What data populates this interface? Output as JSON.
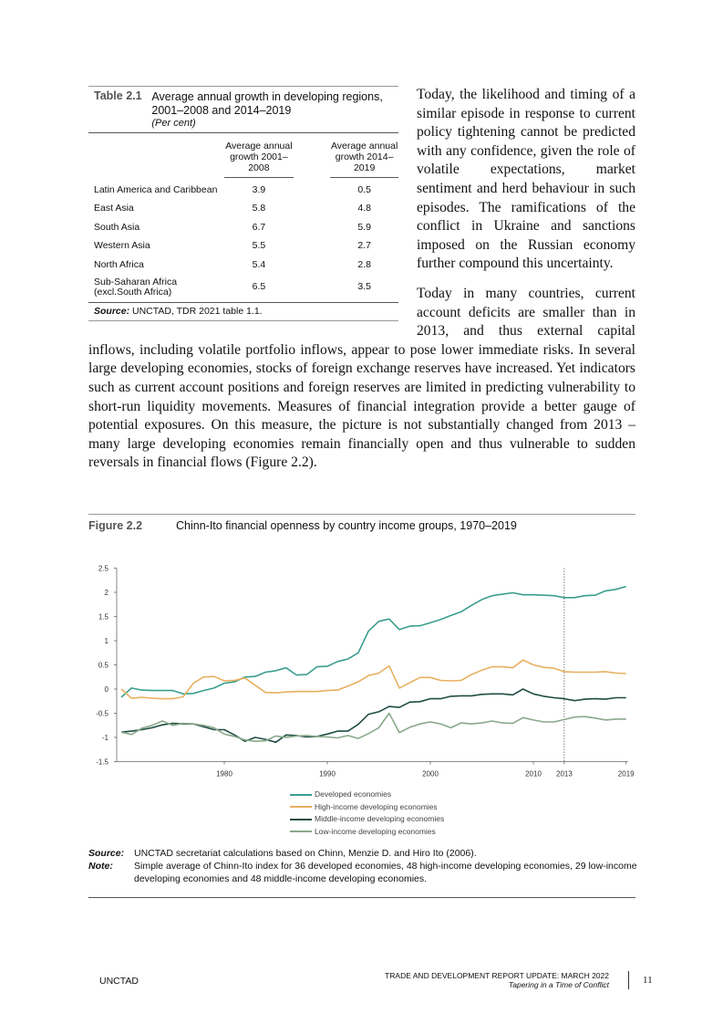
{
  "table": {
    "label": "Table 2.1",
    "title": "Average annual growth in developing regions, 2001–2008 and 2014–2019",
    "unit": "(Per cent)",
    "columns": [
      "Average annual growth 2001–2008",
      "Average annual growth 2014–2019"
    ],
    "rows": [
      {
        "name": "Latin America and Caribbean",
        "v1": "3.9",
        "v2": "0.5"
      },
      {
        "name": "East Asia",
        "v1": "5.8",
        "v2": "4.8"
      },
      {
        "name": "South Asia",
        "v1": "6.7",
        "v2": "5.9"
      },
      {
        "name": "Western Asia",
        "v1": "5.5",
        "v2": "2.7"
      },
      {
        "name": "North Africa",
        "v1": "5.4",
        "v2": "2.8"
      },
      {
        "name": "Sub-Saharan Africa (excl.South Africa)",
        "v1": "6.5",
        "v2": "3.5"
      }
    ],
    "source_label": "Source:",
    "source": " UNCTAD, TDR 2021 table 1.1."
  },
  "body": {
    "p1": "Today, the likelihood and timing of a similar episode in response to current policy tightening cannot be predicted with any confidence, given the role of volatile expectations, market sentiment and herd behaviour in such episodes. The ramifications of the conflict in Ukraine and sanctions imposed on the Russian economy further compound this uncertainty.",
    "p2": "Today in many countries, current account deficits are smaller than in 2013, and thus external capital inflows, including volatile portfolio inflows, appear to pose lower immediate risks. In several large developing economies, stocks of foreign exchange reserves have increased. Yet indicators such as current account positions and foreign reserves are limited in predicting vulnerability to short-run liquidity movements. Measures of financial integration provide a better gauge of potential exposures. On this measure, the picture is not substantially changed from 2013 – many large developing economies remain financially open and thus vulnerable to sudden reversals in financial flows (Figure 2.2)."
  },
  "figure": {
    "label": "Figure 2.2",
    "title": "Chinn-Ito financial openness by country income groups, 1970–2019",
    "source_label": "Source:",
    "source": "UNCTAD secretariat calculations based on Chinn, Menzie D. and Hiro Ito (2006).",
    "note_label": "Note:",
    "note": "Simple average of Chinn-Ito index for 36 developed economies, 48 high-income developing economies, 29 low-income developing economies and 48 middle-income developing economies."
  },
  "chart_data": {
    "type": "line",
    "title": "Chinn-Ito financial openness by country income groups, 1970–2019",
    "x_start": 1970,
    "x_end": 2019,
    "xticks": [
      "1980",
      "1990",
      "2000",
      "2010",
      "2013",
      "2019"
    ],
    "xtick_values": [
      1980,
      1990,
      2000,
      2010,
      2013,
      2019
    ],
    "yticks": [
      "2.5",
      "2",
      "1.5",
      "1",
      "0.5",
      "0",
      "-0.5",
      "-1",
      "-1.5"
    ],
    "ylim": [
      -1.5,
      2.5
    ],
    "reference_line_year": 2013,
    "legend_placement": "bottom",
    "series": [
      {
        "name": "Developed economies",
        "color": "#3a9e8f",
        "values": [
          -0.17,
          0.02,
          -0.02,
          -0.03,
          -0.03,
          -0.03,
          -0.1,
          -0.09,
          -0.03,
          0.02,
          0.12,
          0.15,
          0.25,
          0.26,
          0.35,
          0.38,
          0.44,
          0.29,
          0.3,
          0.46,
          0.47,
          0.57,
          0.62,
          0.75,
          1.2,
          1.4,
          1.45,
          1.23,
          1.3,
          1.31,
          1.37,
          1.44,
          1.52,
          1.6,
          1.73,
          1.85,
          1.93,
          1.96,
          1.99,
          1.95,
          1.95,
          1.94,
          1.93,
          1.89,
          1.89,
          1.93,
          1.94,
          2.03,
          2.06,
          2.12
        ]
      },
      {
        "name": "High-income developing economies",
        "color": "#e8b060",
        "values": [
          0.0,
          -0.19,
          -0.17,
          -0.19,
          -0.2,
          -0.2,
          -0.16,
          0.12,
          0.25,
          0.26,
          0.17,
          0.18,
          0.23,
          0.08,
          -0.07,
          -0.08,
          -0.06,
          -0.05,
          -0.05,
          -0.05,
          -0.03,
          -0.02,
          0.06,
          0.15,
          0.28,
          0.33,
          0.48,
          0.02,
          0.13,
          0.24,
          0.24,
          0.18,
          0.17,
          0.18,
          0.3,
          0.39,
          0.46,
          0.46,
          0.44,
          0.6,
          0.5,
          0.45,
          0.43,
          0.36,
          0.35,
          0.35,
          0.35,
          0.36,
          0.33,
          0.32
        ]
      },
      {
        "name": "Middle-income developing economies",
        "color": "#1f4d45",
        "values": [
          -0.89,
          -0.87,
          -0.84,
          -0.8,
          -0.74,
          -0.71,
          -0.72,
          -0.72,
          -0.78,
          -0.84,
          -0.84,
          -0.95,
          -1.08,
          -1.0,
          -1.04,
          -1.1,
          -0.95,
          -0.96,
          -0.99,
          -0.98,
          -0.93,
          -0.87,
          -0.87,
          -0.73,
          -0.52,
          -0.47,
          -0.36,
          -0.38,
          -0.27,
          -0.26,
          -0.2,
          -0.2,
          -0.15,
          -0.14,
          -0.14,
          -0.11,
          -0.1,
          -0.1,
          -0.12,
          0.0,
          -0.1,
          -0.15,
          -0.18,
          -0.2,
          -0.24,
          -0.21,
          -0.2,
          -0.21,
          -0.18,
          -0.18
        ]
      },
      {
        "name": "Low-income developing economies",
        "color": "#8aa88a",
        "values": [
          -0.89,
          -0.94,
          -0.81,
          -0.75,
          -0.66,
          -0.75,
          -0.71,
          -0.72,
          -0.75,
          -0.8,
          -0.93,
          -0.98,
          -1.05,
          -1.08,
          -1.07,
          -0.97,
          -1.0,
          -0.97,
          -0.96,
          -0.98,
          -0.99,
          -1.01,
          -0.96,
          -1.02,
          -0.92,
          -0.8,
          -0.5,
          -0.9,
          -0.79,
          -0.72,
          -0.68,
          -0.72,
          -0.8,
          -0.7,
          -0.72,
          -0.7,
          -0.66,
          -0.7,
          -0.71,
          -0.59,
          -0.64,
          -0.68,
          -0.68,
          -0.63,
          -0.58,
          -0.57,
          -0.6,
          -0.64,
          -0.62,
          -0.62
        ]
      }
    ]
  },
  "footer": {
    "org": "UNCTAD",
    "report": "TRADE AND DEVELOPMENT REPORT UPDATE: MARCH 2022",
    "subtitle": "Tapering in a Time of Conflict",
    "page": "11"
  }
}
